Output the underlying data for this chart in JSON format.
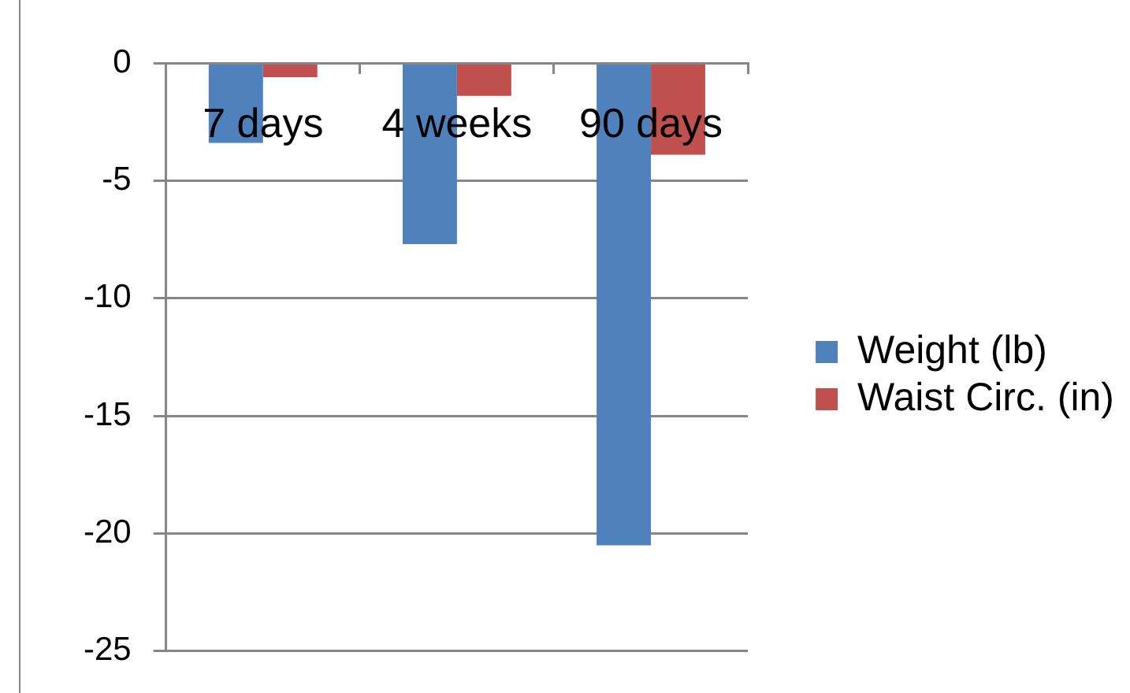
{
  "chart_data": {
    "type": "bar",
    "categories": [
      "7 days",
      "4 weeks",
      "90 days"
    ],
    "series": [
      {
        "name": "Weight (lb)",
        "color": "#4f81bd",
        "values": [
          -3.4,
          -7.7,
          -20.5
        ]
      },
      {
        "name": "Waist Circ. (in)",
        "color": "#c0504d",
        "values": [
          -0.6,
          -1.4,
          -3.9
        ]
      }
    ],
    "ylim": [
      -25,
      0
    ],
    "yticks": [
      -25,
      -20,
      -15,
      -10,
      -5,
      0
    ],
    "grid": "y",
    "legend": "right"
  }
}
